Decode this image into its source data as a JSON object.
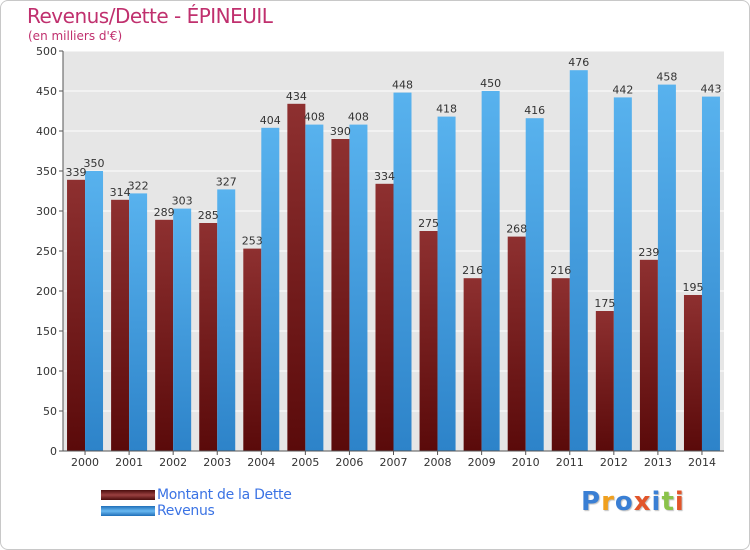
{
  "title": "Revenus/Dette - ÉPINEUIL",
  "subtitle": "(en milliers d'€)",
  "colors": {
    "title": "#c0306e",
    "dette": "#7d2a2a",
    "revenus": "#4aa3e6",
    "legend_text": "#3b73e4"
  },
  "brand": {
    "text": "Proxiti",
    "letter_colors": [
      "#3a7fd4",
      "#f0a01e",
      "#3a7fd4",
      "#e2552a",
      "#3a7fd4",
      "#8bc34a",
      "#e2552a"
    ]
  },
  "chart_data": {
    "type": "bar",
    "categories": [
      "2000",
      "2001",
      "2002",
      "2003",
      "2004",
      "2005",
      "2006",
      "2007",
      "2008",
      "2009",
      "2010",
      "2011",
      "2012",
      "2013",
      "2014"
    ],
    "series": [
      {
        "name": "Montant de la Dette",
        "color": "#7d2a2a",
        "values": [
          339,
          314,
          289,
          285,
          253,
          434,
          390,
          334,
          275,
          216,
          268,
          216,
          175,
          239,
          195
        ]
      },
      {
        "name": "Revenus",
        "color": "#4aa3e6",
        "values": [
          350,
          322,
          303,
          327,
          404,
          408,
          408,
          448,
          418,
          450,
          416,
          476,
          442,
          458,
          443
        ]
      }
    ],
    "ylim": [
      0,
      500
    ],
    "yticks": [
      0,
      50,
      100,
      150,
      200,
      250,
      300,
      350,
      400,
      450,
      500
    ],
    "grid": true,
    "legend_position": "bottom-left"
  }
}
